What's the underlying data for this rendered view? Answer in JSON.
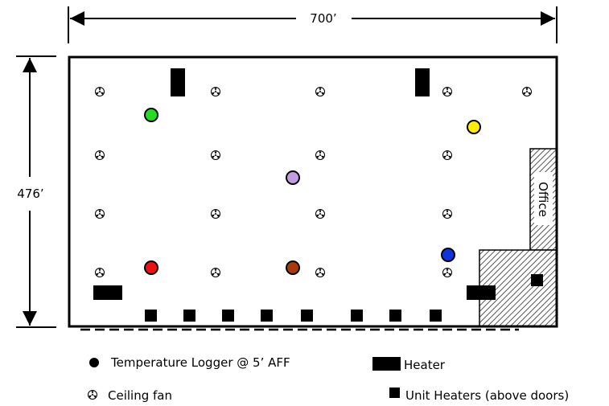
{
  "dimensions": {
    "width_label": "700’",
    "height_label": "476’"
  },
  "rooms": {
    "office_label": "Office"
  },
  "loggers": [
    {
      "id": "green",
      "color": "#22dd22"
    },
    {
      "id": "yellow",
      "color": "#ffee00"
    },
    {
      "id": "purple",
      "color": "#c39be0"
    },
    {
      "id": "blue",
      "color": "#1133dd"
    },
    {
      "id": "red",
      "color": "#ee1111"
    },
    {
      "id": "brown",
      "color": "#a83a0a"
    }
  ],
  "legend": {
    "logger_label": "Temperature Logger @ 5’ AFF",
    "fan_label": "Ceiling fan",
    "heater_label": "Heater",
    "unit_heater_label": "Unit Heaters (above doors)"
  }
}
